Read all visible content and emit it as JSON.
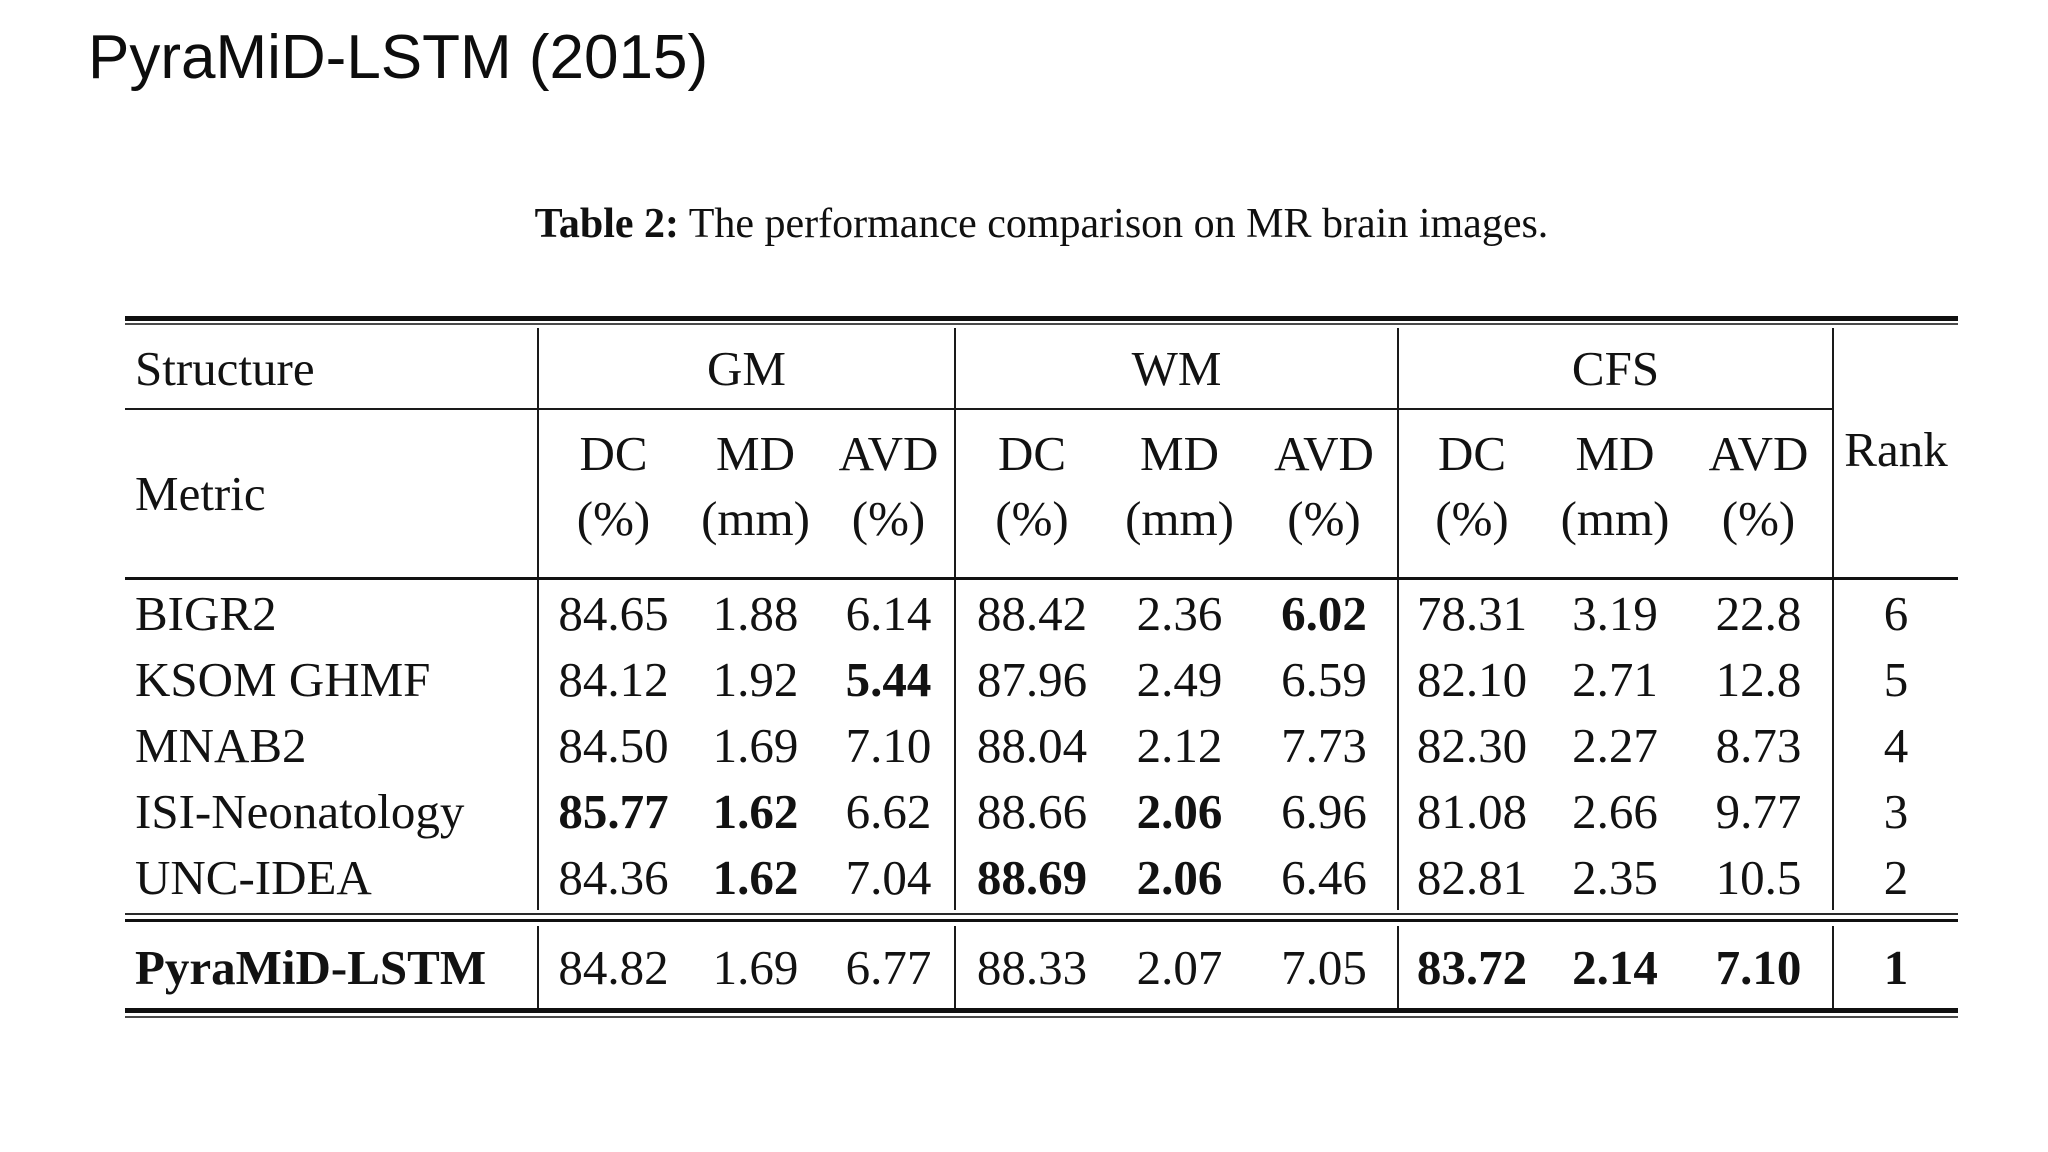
{
  "slide": {
    "title": "PyraMiD-LSTM (2015)",
    "background_color": "#ffffff",
    "text_color": "#141414"
  },
  "caption": {
    "label": "Table 2:",
    "text": " The performance comparison on MR brain images."
  },
  "table": {
    "corner_row1": "Structure",
    "corner_row2": "Metric",
    "rank_header": "Rank",
    "groups": [
      {
        "label": "GM"
      },
      {
        "label": "WM"
      },
      {
        "label": "CFS"
      }
    ],
    "metric_cols": [
      {
        "l1": "DC",
        "l2": "(%)"
      },
      {
        "l1": "MD",
        "l2": "(mm)"
      },
      {
        "l1": "AVD",
        "l2": "(%)"
      }
    ],
    "rows": [
      {
        "name": "BIGR2",
        "name_bold": false,
        "values": [
          {
            "v": "84.65",
            "b": false
          },
          {
            "v": "1.88",
            "b": false
          },
          {
            "v": "6.14",
            "b": false
          },
          {
            "v": "88.42",
            "b": false
          },
          {
            "v": "2.36",
            "b": false
          },
          {
            "v": "6.02",
            "b": true
          },
          {
            "v": "78.31",
            "b": false
          },
          {
            "v": "3.19",
            "b": false
          },
          {
            "v": "22.8",
            "b": false
          }
        ],
        "rank": "6",
        "rank_bold": false
      },
      {
        "name": "KSOM GHMF",
        "name_bold": false,
        "values": [
          {
            "v": "84.12",
            "b": false
          },
          {
            "v": "1.92",
            "b": false
          },
          {
            "v": "5.44",
            "b": true
          },
          {
            "v": "87.96",
            "b": false
          },
          {
            "v": "2.49",
            "b": false
          },
          {
            "v": "6.59",
            "b": false
          },
          {
            "v": "82.10",
            "b": false
          },
          {
            "v": "2.71",
            "b": false
          },
          {
            "v": "12.8",
            "b": false
          }
        ],
        "rank": "5",
        "rank_bold": false
      },
      {
        "name": "MNAB2",
        "name_bold": false,
        "values": [
          {
            "v": "84.50",
            "b": false
          },
          {
            "v": "1.69",
            "b": false
          },
          {
            "v": "7.10",
            "b": false
          },
          {
            "v": "88.04",
            "b": false
          },
          {
            "v": "2.12",
            "b": false
          },
          {
            "v": "7.73",
            "b": false
          },
          {
            "v": "82.30",
            "b": false
          },
          {
            "v": "2.27",
            "b": false
          },
          {
            "v": "8.73",
            "b": false
          }
        ],
        "rank": "4",
        "rank_bold": false
      },
      {
        "name": "ISI-Neonatology",
        "name_bold": false,
        "values": [
          {
            "v": "85.77",
            "b": true
          },
          {
            "v": "1.62",
            "b": true
          },
          {
            "v": "6.62",
            "b": false
          },
          {
            "v": "88.66",
            "b": false
          },
          {
            "v": "2.06",
            "b": true
          },
          {
            "v": "6.96",
            "b": false
          },
          {
            "v": "81.08",
            "b": false
          },
          {
            "v": "2.66",
            "b": false
          },
          {
            "v": "9.77",
            "b": false
          }
        ],
        "rank": "3",
        "rank_bold": false
      },
      {
        "name": "UNC-IDEA",
        "name_bold": false,
        "values": [
          {
            "v": "84.36",
            "b": false
          },
          {
            "v": "1.62",
            "b": true
          },
          {
            "v": "7.04",
            "b": false
          },
          {
            "v": "88.69",
            "b": true
          },
          {
            "v": "2.06",
            "b": true
          },
          {
            "v": "6.46",
            "b": false
          },
          {
            "v": "82.81",
            "b": false
          },
          {
            "v": "2.35",
            "b": false
          },
          {
            "v": "10.5",
            "b": false
          }
        ],
        "rank": "2",
        "rank_bold": false
      }
    ],
    "final_row": {
      "name": "PyraMiD-LSTM",
      "name_bold": true,
      "values": [
        {
          "v": "84.82",
          "b": false
        },
        {
          "v": "1.69",
          "b": false
        },
        {
          "v": "6.77",
          "b": false
        },
        {
          "v": "88.33",
          "b": false
        },
        {
          "v": "2.07",
          "b": false
        },
        {
          "v": "7.05",
          "b": false
        },
        {
          "v": "83.72",
          "b": true
        },
        {
          "v": "2.14",
          "b": true
        },
        {
          "v": "7.10",
          "b": true
        }
      ],
      "rank": "1",
      "rank_bold": true
    }
  }
}
